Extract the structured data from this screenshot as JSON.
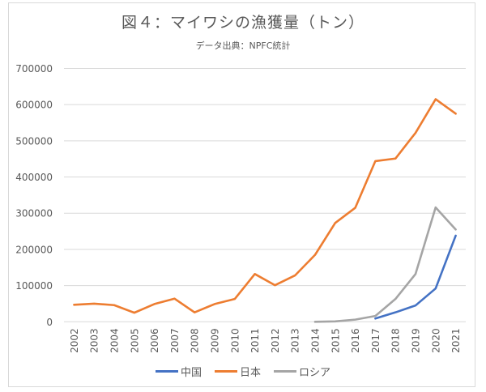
{
  "chart_data": {
    "type": "line",
    "title": "図４：マイワシの漁獲量（トン）",
    "subtitle": "データ出典：NPFC統計",
    "xlabel": "",
    "ylabel": "",
    "ylim": [
      0,
      700000
    ],
    "yticks": [
      0,
      100000,
      200000,
      300000,
      400000,
      500000,
      600000,
      700000
    ],
    "ytick_labels": [
      "0",
      "100000",
      "200000",
      "300000",
      "400000",
      "500000",
      "600000",
      "700000"
    ],
    "grid": true,
    "legend_position": "bottom",
    "categories": [
      "2002",
      "2003",
      "2004",
      "2005",
      "2006",
      "2007",
      "2008",
      "2009",
      "2010",
      "2011",
      "2012",
      "2013",
      "2014",
      "2015",
      "2016",
      "2017",
      "2018",
      "2019",
      "2020",
      "2021"
    ],
    "series": [
      {
        "name": "中国",
        "color": "#4472c4",
        "values": [
          null,
          null,
          null,
          null,
          null,
          null,
          null,
          null,
          null,
          null,
          null,
          null,
          null,
          null,
          null,
          9000,
          26000,
          45000,
          92000,
          238000
        ]
      },
      {
        "name": "日本",
        "color": "#ed7d31",
        "values": [
          47000,
          50000,
          46000,
          25000,
          49000,
          64000,
          26000,
          49000,
          63000,
          132000,
          101000,
          128000,
          185000,
          273000,
          315000,
          444000,
          451000,
          522000,
          615000,
          575000
        ]
      },
      {
        "name": "ロシア",
        "color": "#a5a5a5",
        "values": [
          null,
          null,
          null,
          null,
          null,
          null,
          null,
          null,
          null,
          null,
          null,
          null,
          0,
          1000,
          6000,
          16000,
          63000,
          132000,
          316000,
          255000
        ]
      }
    ]
  }
}
